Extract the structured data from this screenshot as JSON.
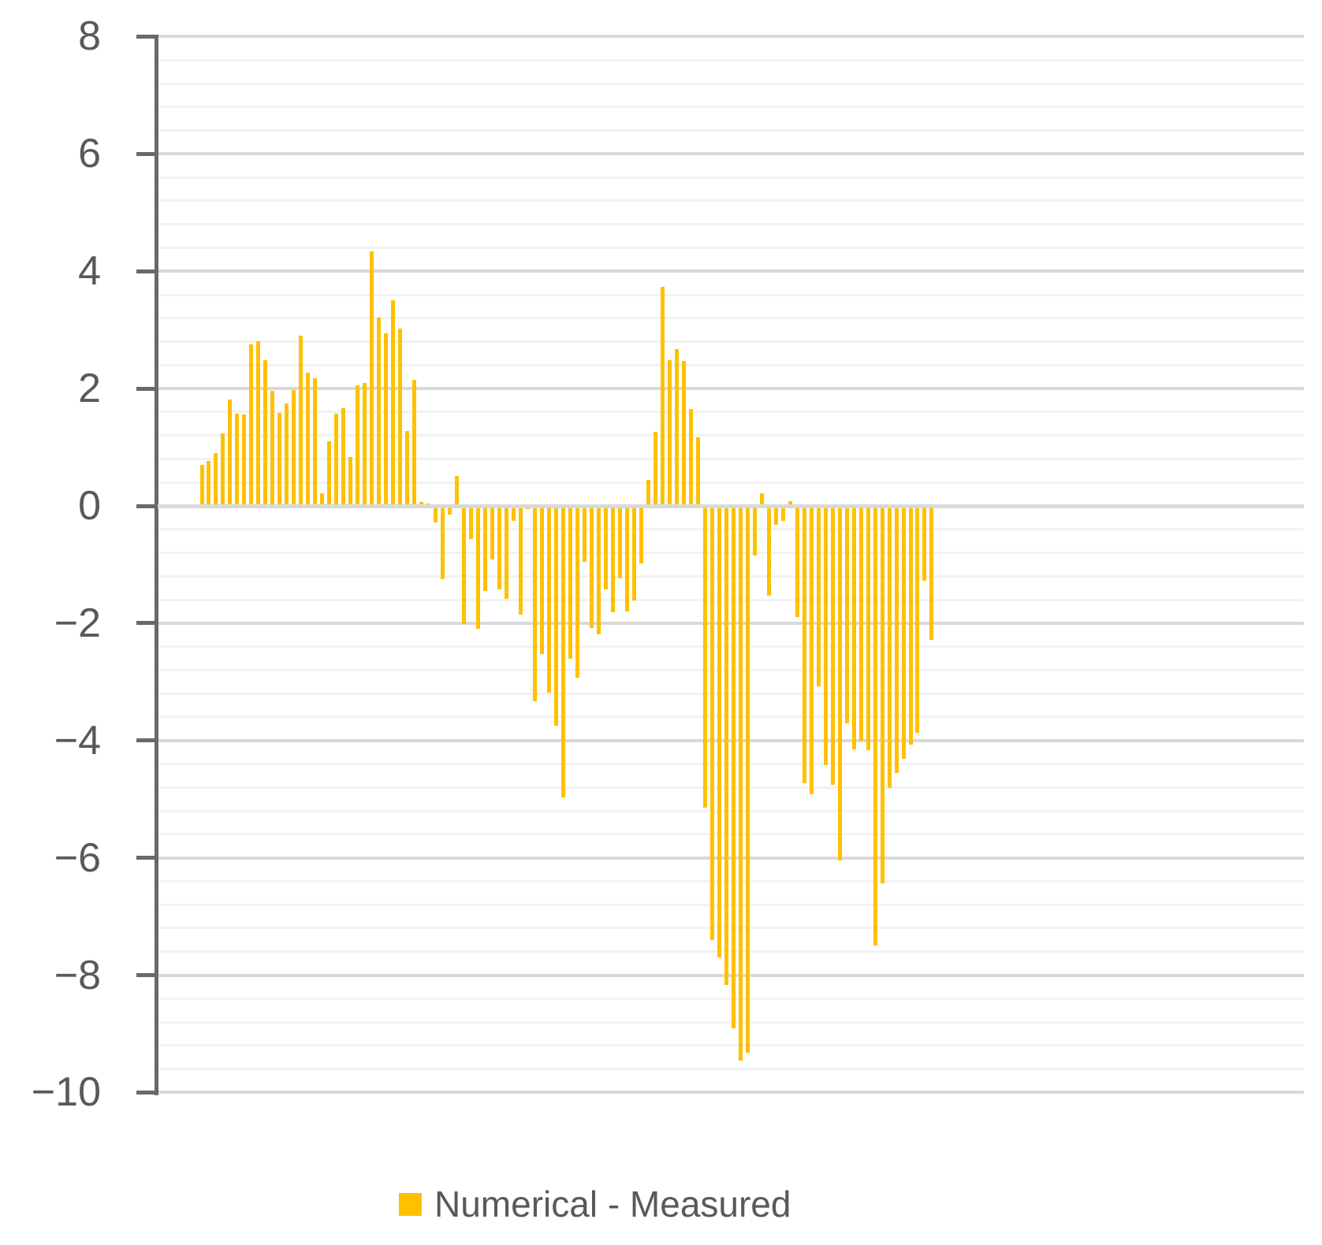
{
  "legend": {
    "label": "Numerical - Measured",
    "swatch_icon": "square-swatch-icon"
  },
  "colors": {
    "bar": "#FFC000",
    "axis_line": "#696969",
    "tick_label": "#595959",
    "grid_major": "#D9D9D9",
    "grid_minor": "#F2F2F2",
    "zero_line": "#D9D9D9",
    "background": "#FFFFFF",
    "legend_text": "#595959"
  },
  "y_axis": {
    "tick_labels": [
      "8",
      "6",
      "4",
      "2",
      "0",
      "−2",
      "−4",
      "−6",
      "−8",
      "−10"
    ],
    "tick_values": [
      8,
      6,
      4,
      2,
      0,
      -2,
      -4,
      -6,
      -8,
      -10
    ]
  },
  "chart_data": {
    "type": "bar",
    "title": "",
    "xlabel": "",
    "ylabel": "",
    "ylim": [
      -10,
      8
    ],
    "y_major_step": 2,
    "y_minor_step": 0.4,
    "grid": "horizontal major+minor on",
    "x_axis_labels_visible": false,
    "n_points": 104,
    "legend_position": "bottom-center",
    "series": [
      {
        "name": "Numerical - Measured",
        "color": "#FFC000",
        "values": [
          0.7,
          0.77,
          0.9,
          1.23,
          1.82,
          1.57,
          1.56,
          2.76,
          2.81,
          2.49,
          1.96,
          1.59,
          1.75,
          1.97,
          2.9,
          2.27,
          2.17,
          0.21,
          1.1,
          1.57,
          1.67,
          0.83,
          2.05,
          2.1,
          4.34,
          3.21,
          2.94,
          3.5,
          3.02,
          1.28,
          2.15,
          0.07,
          0.04,
          -0.28,
          -1.25,
          -0.15,
          0.51,
          -2.01,
          -0.57,
          -2.1,
          -1.45,
          -0.91,
          -1.43,
          -1.58,
          -0.26,
          -1.85,
          -0.06,
          -3.33,
          -2.52,
          -3.19,
          -3.75,
          -4.97,
          -2.61,
          -2.93,
          -0.96,
          -2.08,
          -2.19,
          -1.43,
          -1.81,
          -1.23,
          -1.8,
          -1.61,
          -0.98,
          0.45,
          1.26,
          3.73,
          2.49,
          2.67,
          2.47,
          1.65,
          1.17,
          -5.14,
          -7.4,
          -7.7,
          -8.17,
          -8.9,
          -9.46,
          -9.32,
          -0.85,
          0.21,
          -1.53,
          -0.32,
          -0.25,
          0.08,
          -1.9,
          -4.73,
          -4.91,
          -3.08,
          -4.42,
          -4.76,
          -6.05,
          -3.71,
          -4.15,
          -4.0,
          -4.17,
          -7.5,
          -6.44,
          -4.81,
          -4.56,
          -4.31,
          -4.07,
          -3.87,
          -1.28,
          -2.28
        ]
      }
    ]
  }
}
